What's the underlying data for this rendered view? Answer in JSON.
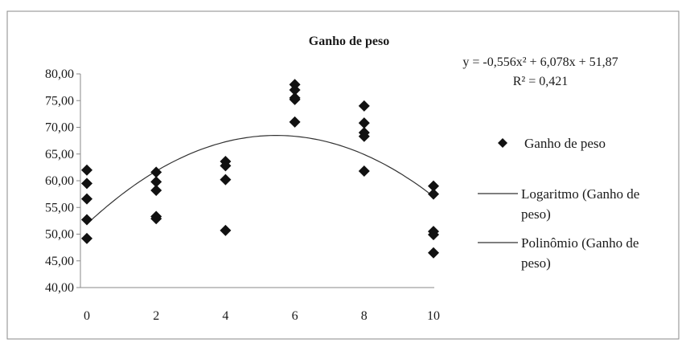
{
  "chart_data": {
    "type": "scatter",
    "title": "Ganho de peso",
    "xlim": [
      0,
      10
    ],
    "ylim": [
      40,
      80
    ],
    "x_ticks": [
      "0",
      "2",
      "4",
      "6",
      "8",
      "10"
    ],
    "y_ticks": [
      "80,00",
      "75,00",
      "70,00",
      "65,00",
      "60,00",
      "55,00",
      "50,00",
      "45,00",
      "40,00"
    ],
    "series": [
      {
        "name": "Ganho de peso",
        "marker": "diamond",
        "color": "#111111",
        "points": [
          [
            0,
            62.0
          ],
          [
            0,
            59.5
          ],
          [
            0,
            56.6
          ],
          [
            0,
            52.7
          ],
          [
            0,
            49.2
          ],
          [
            2,
            61.6
          ],
          [
            2,
            59.8
          ],
          [
            2,
            58.2
          ],
          [
            2,
            53.3
          ],
          [
            2,
            52.9
          ],
          [
            4,
            63.6
          ],
          [
            4,
            62.8
          ],
          [
            4,
            60.2
          ],
          [
            4,
            50.7
          ],
          [
            6,
            78.0
          ],
          [
            6,
            77.0
          ],
          [
            6,
            75.5
          ],
          [
            6,
            75.2
          ],
          [
            6,
            71.0
          ],
          [
            8,
            74.0
          ],
          [
            8,
            70.8
          ],
          [
            8,
            69.0
          ],
          [
            8,
            68.3
          ],
          [
            8,
            61.8
          ],
          [
            10,
            59.0
          ],
          [
            10,
            57.5
          ],
          [
            10,
            50.5
          ],
          [
            10,
            49.9
          ],
          [
            10,
            46.5
          ]
        ]
      }
    ],
    "trendline": {
      "type": "polynomial",
      "coefficients": [
        -0.556,
        6.078,
        51.87
      ],
      "color": "#333333"
    },
    "equation": "y = -0,556x² + 6,078x + 51,87",
    "r_squared": "R² = 0,421",
    "legend": {
      "position": "right",
      "entries": [
        {
          "label_line1": "Ganho de peso",
          "label_line2": ""
        },
        {
          "label_line1": "Logaritmo (Ganho de",
          "label_line2": "peso)"
        },
        {
          "label_line1": "Polinômio (Ganho de",
          "label_line2": "peso)"
        }
      ]
    },
    "grid": false
  }
}
